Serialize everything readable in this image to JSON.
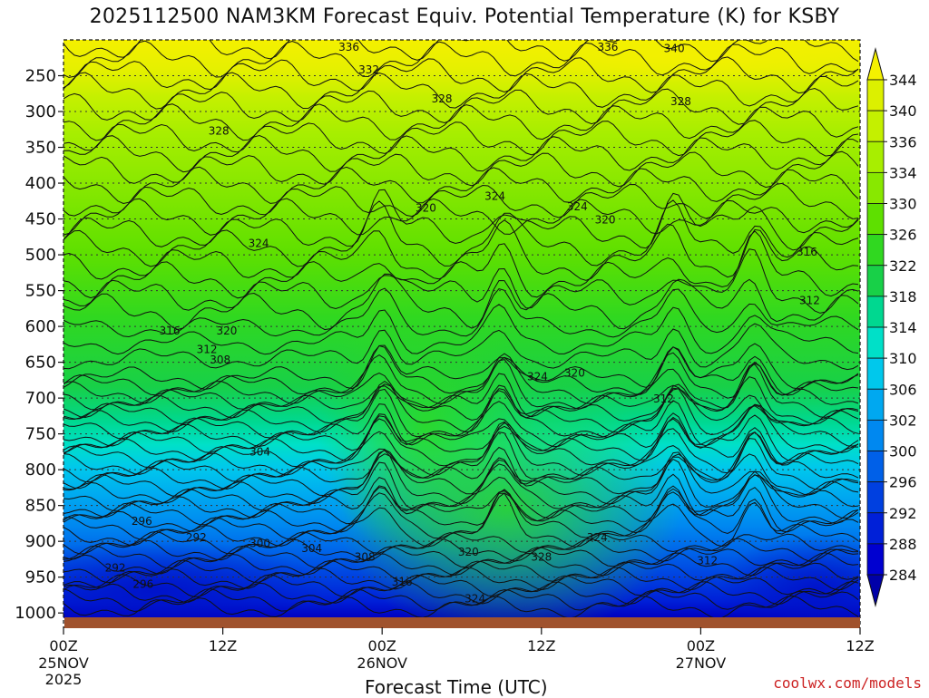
{
  "chart_data": {
    "type": "heatmap",
    "title": "2025112500 NAM3KM Forecast Equiv. Potential Temperature (K) for KSBY",
    "xlabel": "Forecast Time (UTC)",
    "ylabel": "",
    "x_ticks": [
      {
        "label": "00Z",
        "sub": "25NOV",
        "sub2": "2025",
        "hours": 0
      },
      {
        "label": "12Z",
        "sub": "",
        "sub2": "",
        "hours": 12
      },
      {
        "label": "00Z",
        "sub": "26NOV",
        "sub2": "",
        "hours": 24
      },
      {
        "label": "12Z",
        "sub": "",
        "sub2": "",
        "hours": 36
      },
      {
        "label": "00Z",
        "sub": "27NOV",
        "sub2": "",
        "hours": 48
      },
      {
        "label": "12Z",
        "sub": "",
        "sub2": "",
        "hours": 60
      }
    ],
    "xlim": [
      0,
      60
    ],
    "y_ticks": [
      250,
      300,
      350,
      400,
      450,
      500,
      550,
      600,
      650,
      700,
      750,
      800,
      850,
      900,
      950,
      1000
    ],
    "ylim": [
      1020,
      200
    ],
    "colorbar_labels": [
      344,
      340,
      336,
      334,
      330,
      326,
      322,
      318,
      314,
      310,
      306,
      302,
      300,
      296,
      292,
      288,
      284
    ],
    "colorbar_colors": [
      "#f4f000",
      "#dcf000",
      "#c4f000",
      "#a8ee00",
      "#88e800",
      "#5ee000",
      "#30d820",
      "#18d048",
      "#00d890",
      "#00e0c8",
      "#00c8ec",
      "#00a8f0",
      "#0088f0",
      "#0060e8",
      "#0040e0",
      "#0020d8",
      "#0000d0",
      "#0000a8"
    ],
    "contour_labels": [
      {
        "text": "336",
        "t": 21.5,
        "p": 210
      },
      {
        "text": "336",
        "t": 41,
        "p": 210
      },
      {
        "text": "340",
        "t": 46,
        "p": 212
      },
      {
        "text": "332",
        "t": 23,
        "p": 242
      },
      {
        "text": "328",
        "t": 28.5,
        "p": 282
      },
      {
        "text": "328",
        "t": 46.5,
        "p": 286
      },
      {
        "text": "328",
        "t": 11.7,
        "p": 327
      },
      {
        "text": "324",
        "t": 32.5,
        "p": 418
      },
      {
        "text": "324",
        "t": 38.7,
        "p": 433
      },
      {
        "text": "320",
        "t": 27.3,
        "p": 435
      },
      {
        "text": "320",
        "t": 40.8,
        "p": 451
      },
      {
        "text": "324",
        "t": 14.7,
        "p": 484
      },
      {
        "text": "316",
        "t": 56,
        "p": 496
      },
      {
        "text": "312",
        "t": 56.2,
        "p": 564
      },
      {
        "text": "316",
        "t": 8,
        "p": 606
      },
      {
        "text": "320",
        "t": 12.3,
        "p": 606
      },
      {
        "text": "312",
        "t": 10.8,
        "p": 632
      },
      {
        "text": "308",
        "t": 11.8,
        "p": 647
      },
      {
        "text": "324",
        "t": 35.7,
        "p": 670
      },
      {
        "text": "320",
        "t": 38.5,
        "p": 665
      },
      {
        "text": "312",
        "t": 45.2,
        "p": 701
      },
      {
        "text": "304",
        "t": 14.8,
        "p": 775
      },
      {
        "text": "296",
        "t": 5.9,
        "p": 872
      },
      {
        "text": "292",
        "t": 10,
        "p": 895
      },
      {
        "text": "300",
        "t": 14.8,
        "p": 903
      },
      {
        "text": "304",
        "t": 18.7,
        "p": 910
      },
      {
        "text": "308",
        "t": 22.7,
        "p": 922
      },
      {
        "text": "320",
        "t": 30.5,
        "p": 915
      },
      {
        "text": "328",
        "t": 36,
        "p": 922
      },
      {
        "text": "324",
        "t": 40.2,
        "p": 895
      },
      {
        "text": "312",
        "t": 48.5,
        "p": 927
      },
      {
        "text": "316",
        "t": 25.5,
        "p": 957
      },
      {
        "text": "324",
        "t": 31,
        "p": 980
      },
      {
        "text": "292",
        "t": 3.9,
        "p": 937
      },
      {
        "text": "296",
        "t": 6,
        "p": 960
      }
    ],
    "credit": "coolwx.com/models"
  }
}
